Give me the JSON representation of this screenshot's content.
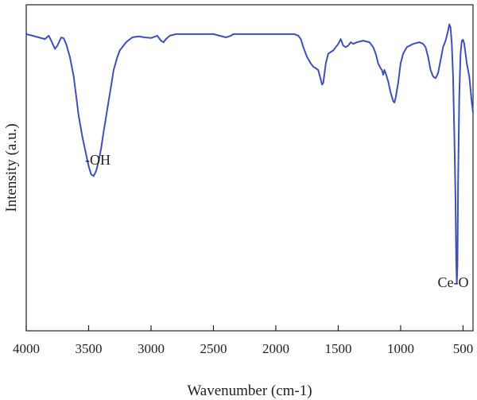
{
  "chart_data": {
    "type": "line",
    "title": "",
    "xlabel": "Wavenumber (cm-1)",
    "ylabel": "Intensity (a.u.)",
    "xlim": [
      4000,
      420
    ],
    "x_reversed": true,
    "ylim": [
      0,
      100
    ],
    "y_ticks_shown": false,
    "grid": false,
    "legend": "none",
    "line_color": "#3f51b5",
    "x_ticks": [
      4000,
      3500,
      3000,
      2500,
      2000,
      1500,
      1000,
      500
    ],
    "x_tick_labels": [
      "4000",
      "3500",
      "3000",
      "2500",
      "2000",
      "1500",
      "1000",
      "500"
    ],
    "series": [
      {
        "x": [
          4000,
          3950,
          3900,
          3850,
          3820,
          3800,
          3770,
          3750,
          3720,
          3700,
          3680,
          3650,
          3620,
          3600,
          3580,
          3550,
          3520,
          3500,
          3480,
          3460,
          3440,
          3420,
          3400,
          3380,
          3350,
          3320,
          3300,
          3270,
          3250,
          3200,
          3150,
          3100,
          3050,
          3000,
          2950,
          2920,
          2900,
          2880,
          2850,
          2800,
          2700,
          2600,
          2500,
          2450,
          2400,
          2360,
          2340,
          2300,
          2200,
          2100,
          2000,
          1900,
          1850,
          1820,
          1800,
          1780,
          1750,
          1720,
          1700,
          1680,
          1660,
          1640,
          1630,
          1620,
          1600,
          1580,
          1560,
          1540,
          1520,
          1500,
          1480,
          1460,
          1440,
          1420,
          1400,
          1380,
          1350,
          1300,
          1250,
          1220,
          1200,
          1180,
          1160,
          1150,
          1140,
          1130,
          1120,
          1100,
          1080,
          1060,
          1050,
          1040,
          1020,
          1000,
          980,
          950,
          900,
          850,
          820,
          800,
          780,
          760,
          740,
          720,
          700,
          680,
          660,
          640,
          620,
          610,
          600,
          590,
          580,
          570,
          560,
          555,
          550,
          545,
          540,
          530,
          520,
          510,
          500,
          490,
          480,
          470,
          460,
          450,
          440,
          430,
          420
        ],
        "y": [
          91,
          90.5,
          90,
          89.5,
          90.5,
          89,
          86.5,
          87.5,
          90,
          89.7,
          88,
          84,
          78,
          72,
          66,
          59.5,
          54,
          50.5,
          48,
          47.5,
          49,
          52,
          56,
          61,
          68,
          75,
          80,
          84,
          86,
          88.5,
          90,
          90.3,
          90,
          89.8,
          90.5,
          89,
          88.5,
          89.5,
          90.5,
          91,
          91,
          91,
          91,
          90.5,
          90,
          90.5,
          91,
          91,
          91,
          91,
          91,
          91,
          91,
          90.5,
          89.5,
          87,
          84,
          82,
          81,
          80.5,
          80,
          77,
          75.5,
          76,
          82,
          85,
          85.5,
          86,
          87,
          88,
          89.5,
          87.5,
          87,
          87.5,
          88.5,
          88,
          88.5,
          89,
          88.5,
          87,
          85,
          82,
          80.5,
          80,
          78.5,
          80,
          79,
          76.5,
          73,
          70.5,
          70,
          71.5,
          76,
          82,
          85,
          87,
          88,
          88.5,
          88,
          87,
          84,
          80,
          78,
          77.5,
          79,
          83,
          87,
          89,
          92,
          94,
          93,
          88,
          78,
          60,
          40,
          22,
          14.5,
          20,
          45,
          72,
          85,
          89,
          89.3,
          88,
          85,
          82,
          80,
          78,
          74,
          70,
          67
        ]
      }
    ],
    "annotations": [
      {
        "text": "-OH",
        "x": 3470,
        "y": 47.5
      },
      {
        "text": "Ce-O",
        "x": 555,
        "y": 14.5
      }
    ]
  }
}
